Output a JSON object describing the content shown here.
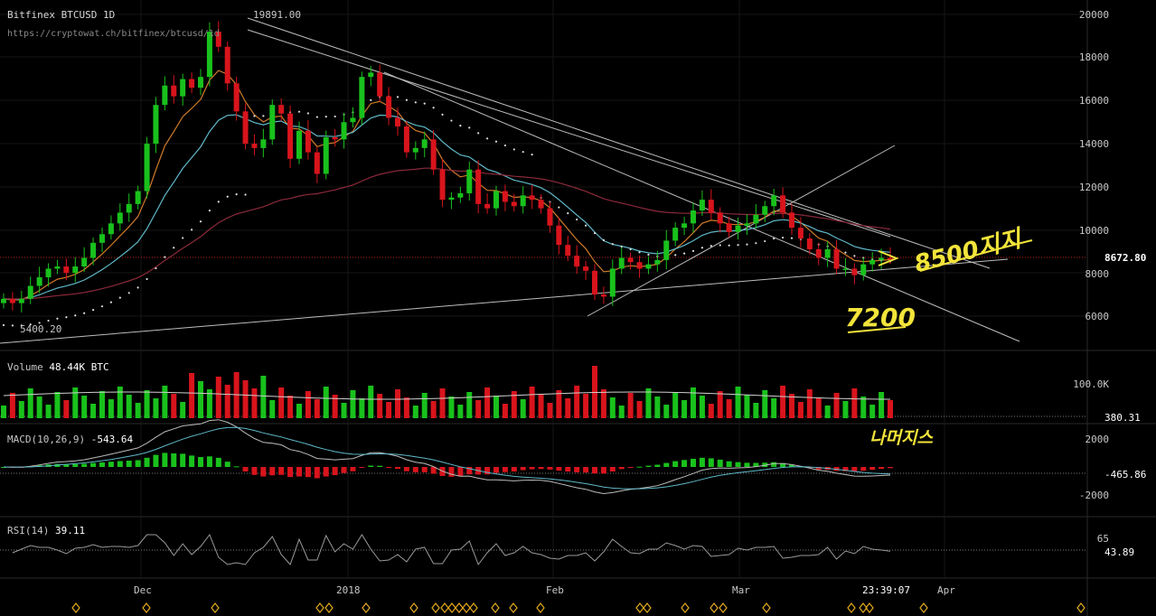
{
  "header": {
    "title": "Bitfinex BTCUSD 1D",
    "url": "https://cryptowat.ch/bitfinex/btcusd/1d",
    "high_label": "19891.00",
    "low_label": "5400.20"
  },
  "price_axis": {
    "ticks": [
      "20000",
      "18000",
      "16000",
      "14000",
      "12000",
      "10000",
      "8000",
      "6000"
    ],
    "current_price": "8672.80"
  },
  "volume_pane": {
    "label": "Volume",
    "value": "48.44K BTC",
    "ticks": [
      "100.0K"
    ],
    "current": "380.31"
  },
  "macd_pane": {
    "label": "MACD(10,26,9)",
    "value": "-543.64",
    "ticks": [
      "2000",
      "-2000"
    ],
    "current": "-465.86"
  },
  "rsi_pane": {
    "label": "RSI(14)",
    "value": "39.11",
    "ticks": [
      "65"
    ],
    "current": "43.89"
  },
  "time_axis": {
    "labels": [
      "Dec",
      "2018",
      "Feb",
      "Mar",
      "Apr"
    ],
    "cursor_time": "23:39:07"
  },
  "annotations": {
    "target_text": "8500지지",
    "support_text": "7200",
    "bottom_text": "나머지스"
  },
  "colors": {
    "up": "#19c11c",
    "down": "#d8141c",
    "ema_fast": "#d07a2a",
    "ema_mid": "#5fb9c9",
    "ema_slow": "#8c2a3a",
    "handwriting": "#f2e43a",
    "marker": "#e3a81e"
  },
  "chart_data": {
    "type": "candlestick",
    "approx_close_path": [
      6800,
      6600,
      6800,
      7400,
      7800,
      8200,
      8300,
      8000,
      8300,
      8700,
      9400,
      9800,
      10300,
      10800,
      11200,
      11800,
      14000,
      15800,
      16700,
      16200,
      17000,
      16600,
      17100,
      19200,
      18500,
      16800,
      15500,
      14000,
      13800,
      14200,
      15800,
      15400,
      13300,
      14600,
      13600,
      12600,
      14300,
      14200,
      15000,
      15200,
      17100,
      17300,
      16200,
      15200,
      14800,
      13600,
      13800,
      14200,
      12800,
      11400,
      11500,
      11700,
      12800,
      11200,
      11000,
      11800,
      11300,
      11100,
      11600,
      11400,
      11000,
      10200,
      9300,
      8800,
      8300,
      8100,
      7000,
      6900,
      8200,
      8700,
      8500,
      8200,
      8400,
      8600,
      9500,
      10100,
      10300,
      10900,
      11400,
      10800,
      10300,
      9900,
      10200,
      10300,
      10700,
      11100,
      11600,
      10800,
      10100,
      9600,
      9100,
      8700,
      9100,
      8200,
      8200,
      7900,
      8400,
      8600,
      8700,
      8672
    ],
    "price_range": [
      4800,
      20300
    ]
  }
}
